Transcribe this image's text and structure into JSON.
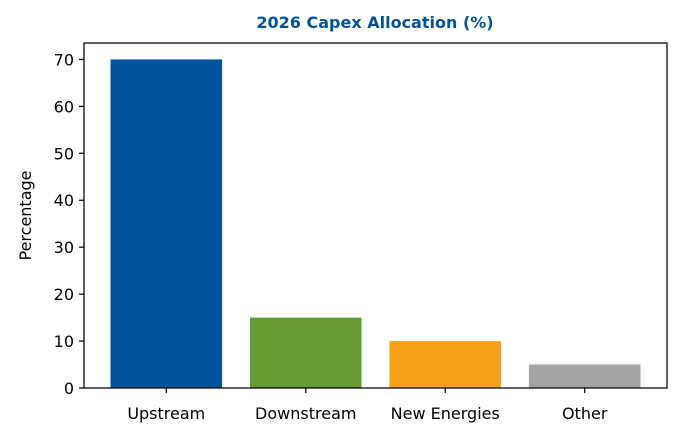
{
  "chart_data": {
    "type": "bar",
    "title": "2026 Capex Allocation (%)",
    "title_color": "#00539b",
    "xlabel": "",
    "ylabel": "Percentage",
    "categories": [
      "Upstream",
      "Downstream",
      "New Energies",
      "Other"
    ],
    "values": [
      70,
      15,
      10,
      5
    ],
    "colors": [
      "#00539b",
      "#689a35",
      "#f9a01b",
      "#a5a5a5"
    ],
    "ylim": [
      0,
      73.5
    ],
    "yticks": [
      0,
      10,
      20,
      30,
      40,
      50,
      60,
      70
    ],
    "grid": false,
    "legend": "none"
  }
}
